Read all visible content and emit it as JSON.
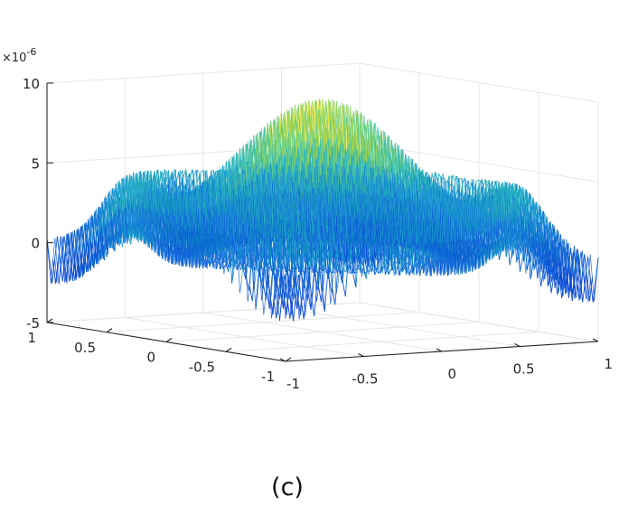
{
  "chart_data": {
    "type": "surface",
    "title": "",
    "xlabel": "",
    "ylabel": "",
    "zlabel": "",
    "xlim": [
      -1,
      1
    ],
    "ylim": [
      -1,
      1
    ],
    "zlim": [
      -5e-06,
      1e-05
    ],
    "x_ticks": [
      "-1",
      "-0.5",
      "0",
      "0.5",
      "1"
    ],
    "y_ticks": [
      "-1",
      "-0.5",
      "0",
      "0.5",
      "1"
    ],
    "z_ticks": [
      "-5",
      "0",
      "5",
      "10"
    ],
    "z_exponent_base": "×10",
    "z_exponent_power": "-6",
    "peak_z": 8.2e-06,
    "grid": true,
    "colormap": "parula",
    "colors": {
      "low": "#0a4fd0",
      "mid": "#2ab0c8",
      "high": "#e8e020"
    }
  },
  "caption": "(c)"
}
